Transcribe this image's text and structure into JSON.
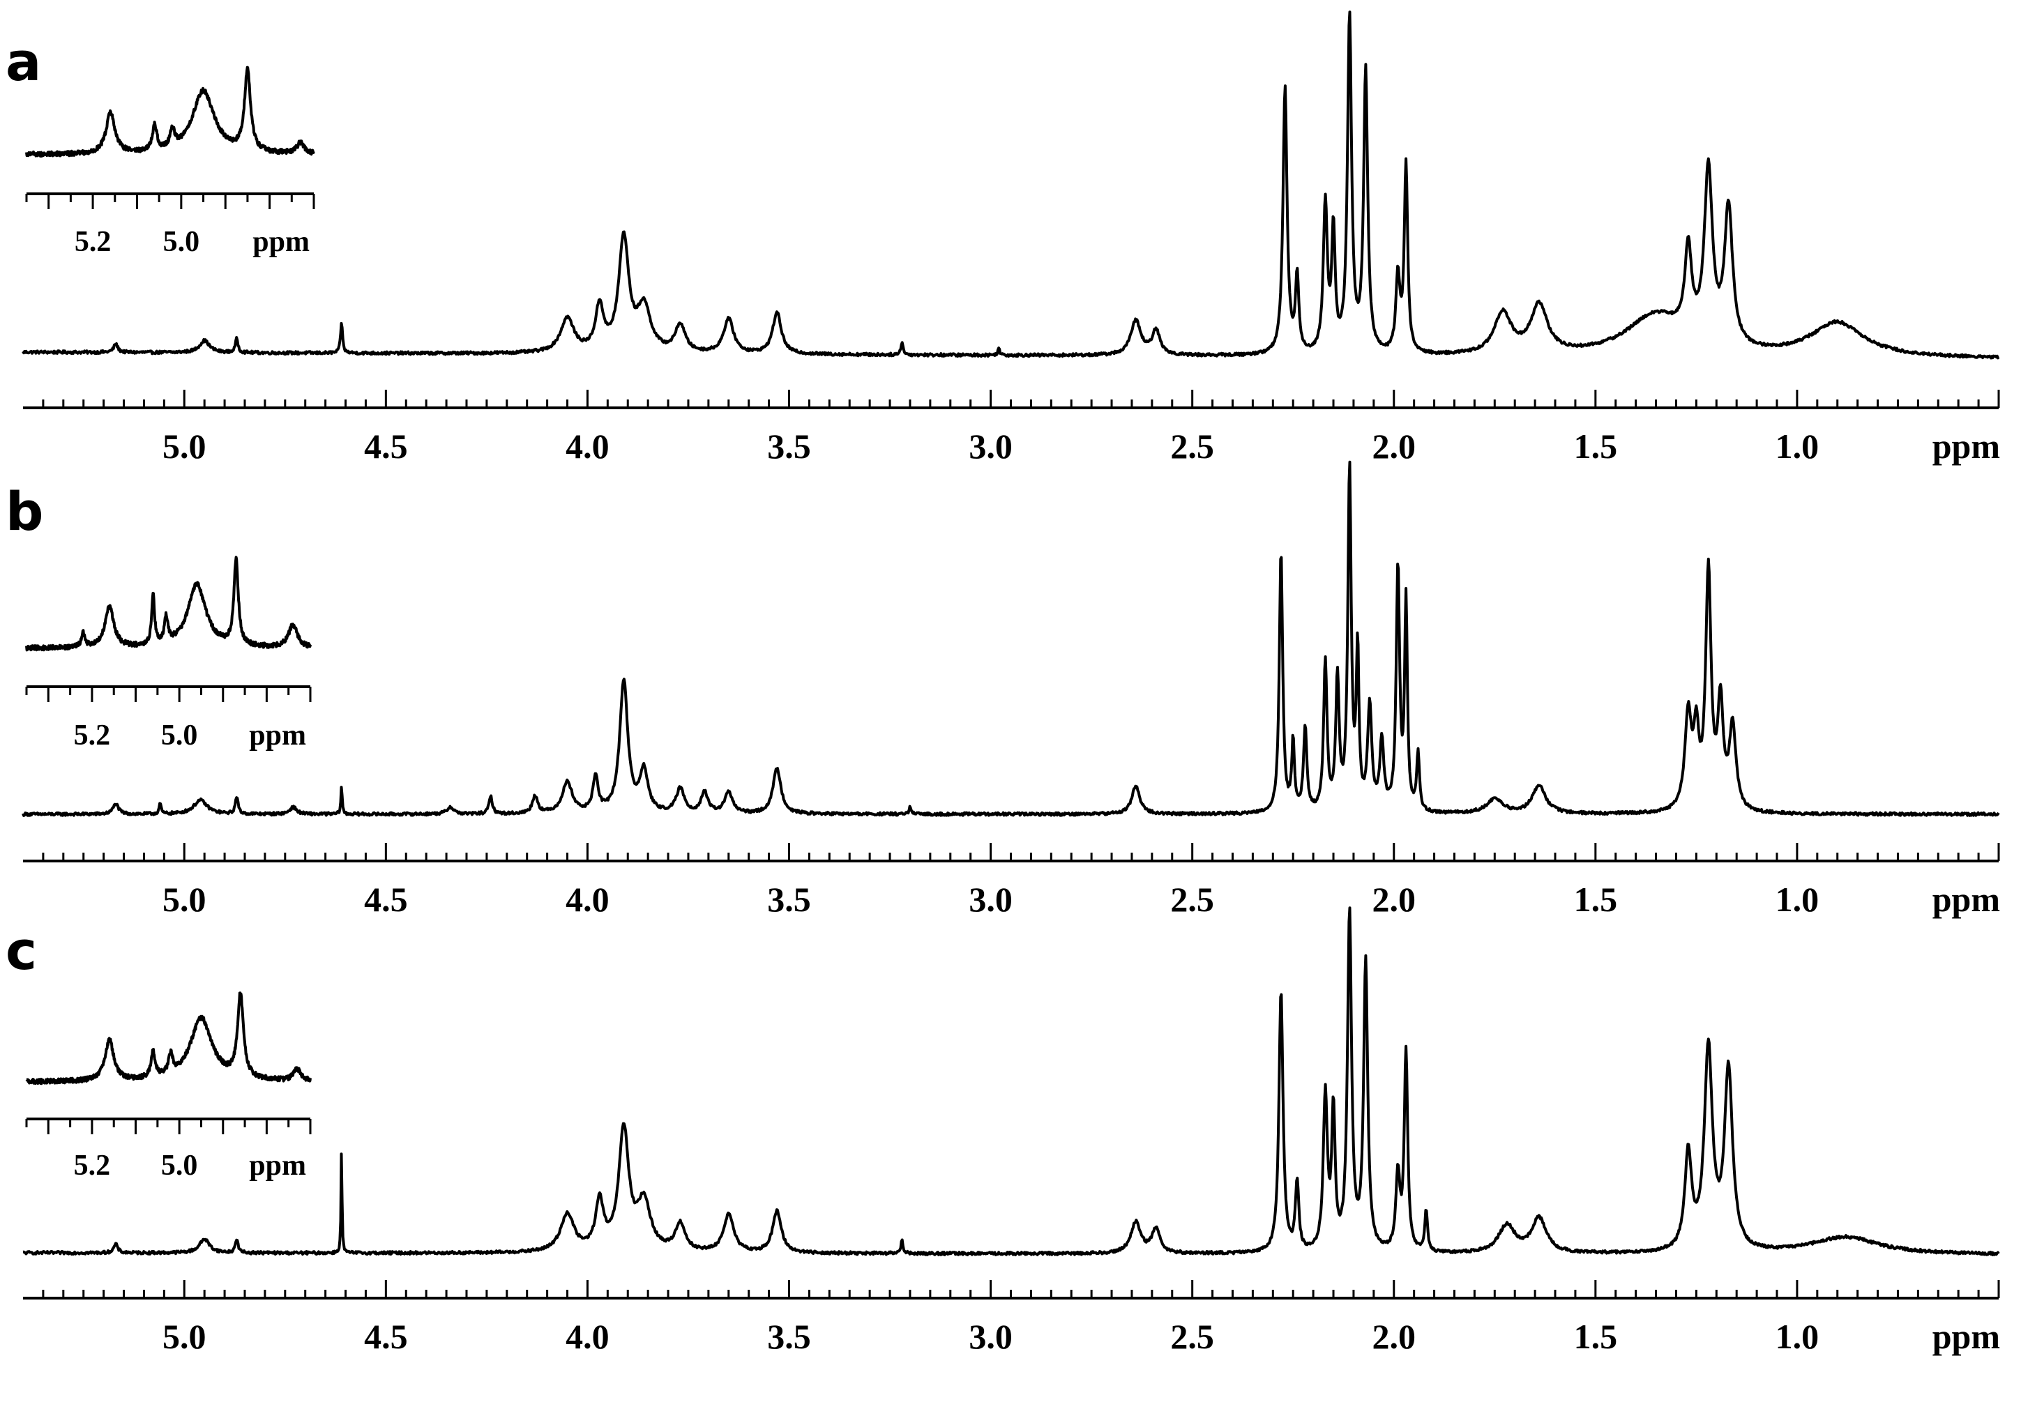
{
  "chart_data": [
    {
      "type": "line",
      "panel": "a",
      "xlabel": "ppm",
      "xlim": [
        5.4,
        0.5
      ],
      "x_ticks": [
        5.0,
        4.5,
        4.0,
        3.5,
        3.0,
        2.5,
        2.0,
        1.5,
        1.0
      ],
      "tick_labels": [
        "5.0",
        "4.5",
        "4.0",
        "3.5",
        "3.0",
        "2.5",
        "2.0",
        "1.5",
        "1.0"
      ],
      "baseline_tilt": 1,
      "peaks": [
        {
          "ppm": 5.17,
          "h": 0.025,
          "w": 0.006
        },
        {
          "ppm": 4.95,
          "h": 0.035,
          "w": 0.015
        },
        {
          "ppm": 4.87,
          "h": 0.04,
          "w": 0.004
        },
        {
          "ppm": 4.61,
          "h": 0.09,
          "w": 0.003
        },
        {
          "ppm": 4.05,
          "h": 0.1,
          "w": 0.02
        },
        {
          "ppm": 3.97,
          "h": 0.13,
          "w": 0.012
        },
        {
          "ppm": 3.91,
          "h": 0.33,
          "w": 0.015
        },
        {
          "ppm": 3.86,
          "h": 0.13,
          "w": 0.02
        },
        {
          "ppm": 3.77,
          "h": 0.08,
          "w": 0.015
        },
        {
          "ppm": 3.65,
          "h": 0.1,
          "w": 0.015
        },
        {
          "ppm": 3.53,
          "h": 0.12,
          "w": 0.013
        },
        {
          "ppm": 3.22,
          "h": 0.04,
          "w": 0.003
        },
        {
          "ppm": 2.98,
          "h": 0.02,
          "w": 0.003
        },
        {
          "ppm": 2.64,
          "h": 0.1,
          "w": 0.015
        },
        {
          "ppm": 2.59,
          "h": 0.07,
          "w": 0.012
        },
        {
          "ppm": 2.27,
          "h": 0.78,
          "w": 0.006
        },
        {
          "ppm": 2.24,
          "h": 0.22,
          "w": 0.005
        },
        {
          "ppm": 2.17,
          "h": 0.43,
          "w": 0.006
        },
        {
          "ppm": 2.15,
          "h": 0.35,
          "w": 0.005
        },
        {
          "ppm": 2.11,
          "h": 0.98,
          "w": 0.006
        },
        {
          "ppm": 2.07,
          "h": 0.82,
          "w": 0.006
        },
        {
          "ppm": 1.99,
          "h": 0.22,
          "w": 0.006
        },
        {
          "ppm": 1.97,
          "h": 0.55,
          "w": 0.005
        },
        {
          "ppm": 1.73,
          "h": 0.12,
          "w": 0.025
        },
        {
          "ppm": 1.64,
          "h": 0.14,
          "w": 0.025
        },
        {
          "ppm": 1.35,
          "h": 0.12,
          "w": 0.09
        },
        {
          "ppm": 1.27,
          "h": 0.25,
          "w": 0.01
        },
        {
          "ppm": 1.22,
          "h": 0.5,
          "w": 0.012
        },
        {
          "ppm": 1.17,
          "h": 0.4,
          "w": 0.012
        },
        {
          "ppm": 0.9,
          "h": 0.1,
          "w": 0.08
        }
      ],
      "inset": {
        "xlabel": "ppm",
        "xlim": [
          5.35,
          4.7
        ],
        "x_ticks": [
          5.2,
          5.0
        ],
        "tick_labels": [
          "5.2",
          "5.0"
        ],
        "peaks": [
          {
            "ppm": 5.16,
            "h": 0.45,
            "w": 0.012
          },
          {
            "ppm": 5.06,
            "h": 0.28,
            "w": 0.006
          },
          {
            "ppm": 5.02,
            "h": 0.2,
            "w": 0.006
          },
          {
            "ppm": 4.95,
            "h": 0.7,
            "w": 0.03
          },
          {
            "ppm": 4.85,
            "h": 0.9,
            "w": 0.008
          },
          {
            "ppm": 4.73,
            "h": 0.12,
            "w": 0.01
          }
        ]
      }
    },
    {
      "type": "line",
      "panel": "b",
      "xlabel": "ppm",
      "xlim": [
        5.4,
        0.5
      ],
      "x_ticks": [
        5.0,
        4.5,
        4.0,
        3.5,
        3.0,
        2.5,
        2.0,
        1.5,
        1.0
      ],
      "tick_labels": [
        "5.0",
        "4.5",
        "4.0",
        "3.5",
        "3.0",
        "2.5",
        "2.0",
        "1.5",
        "1.0"
      ],
      "baseline_tilt": 0,
      "peaks": [
        {
          "ppm": 5.17,
          "h": 0.03,
          "w": 0.008
        },
        {
          "ppm": 5.06,
          "h": 0.03,
          "w": 0.003
        },
        {
          "ppm": 4.96,
          "h": 0.04,
          "w": 0.02
        },
        {
          "ppm": 4.87,
          "h": 0.05,
          "w": 0.004
        },
        {
          "ppm": 4.73,
          "h": 0.02,
          "w": 0.01
        },
        {
          "ppm": 4.61,
          "h": 0.08,
          "w": 0.002
        },
        {
          "ppm": 4.34,
          "h": 0.02,
          "w": 0.01
        },
        {
          "ppm": 4.24,
          "h": 0.05,
          "w": 0.005
        },
        {
          "ppm": 4.13,
          "h": 0.05,
          "w": 0.008
        },
        {
          "ppm": 4.05,
          "h": 0.09,
          "w": 0.015
        },
        {
          "ppm": 3.98,
          "h": 0.1,
          "w": 0.008
        },
        {
          "ppm": 3.91,
          "h": 0.38,
          "w": 0.012
        },
        {
          "ppm": 3.86,
          "h": 0.12,
          "w": 0.012
        },
        {
          "ppm": 3.77,
          "h": 0.07,
          "w": 0.012
        },
        {
          "ppm": 3.71,
          "h": 0.06,
          "w": 0.01
        },
        {
          "ppm": 3.65,
          "h": 0.06,
          "w": 0.012
        },
        {
          "ppm": 3.53,
          "h": 0.13,
          "w": 0.012
        },
        {
          "ppm": 3.2,
          "h": 0.02,
          "w": 0.003
        },
        {
          "ppm": 2.64,
          "h": 0.08,
          "w": 0.012
        },
        {
          "ppm": 2.28,
          "h": 0.75,
          "w": 0.005
        },
        {
          "ppm": 2.25,
          "h": 0.2,
          "w": 0.004
        },
        {
          "ppm": 2.22,
          "h": 0.24,
          "w": 0.005
        },
        {
          "ppm": 2.17,
          "h": 0.43,
          "w": 0.005
        },
        {
          "ppm": 2.14,
          "h": 0.38,
          "w": 0.005
        },
        {
          "ppm": 2.11,
          "h": 0.98,
          "w": 0.005
        },
        {
          "ppm": 2.09,
          "h": 0.45,
          "w": 0.004
        },
        {
          "ppm": 2.06,
          "h": 0.3,
          "w": 0.006
        },
        {
          "ppm": 2.03,
          "h": 0.2,
          "w": 0.006
        },
        {
          "ppm": 1.99,
          "h": 0.7,
          "w": 0.005
        },
        {
          "ppm": 1.97,
          "h": 0.6,
          "w": 0.004
        },
        {
          "ppm": 1.94,
          "h": 0.17,
          "w": 0.004
        },
        {
          "ppm": 1.75,
          "h": 0.04,
          "w": 0.025
        },
        {
          "ppm": 1.64,
          "h": 0.08,
          "w": 0.02
        },
        {
          "ppm": 1.27,
          "h": 0.27,
          "w": 0.01
        },
        {
          "ppm": 1.25,
          "h": 0.2,
          "w": 0.008
        },
        {
          "ppm": 1.22,
          "h": 0.68,
          "w": 0.008
        },
        {
          "ppm": 1.19,
          "h": 0.3,
          "w": 0.008
        },
        {
          "ppm": 1.16,
          "h": 0.24,
          "w": 0.01
        }
      ],
      "inset": {
        "xlabel": "ppm",
        "xlim": [
          5.35,
          4.7
        ],
        "x_ticks": [
          5.2,
          5.0
        ],
        "tick_labels": [
          "5.2",
          "5.0"
        ],
        "peaks": [
          {
            "ppm": 5.22,
            "h": 0.15,
            "w": 0.005
          },
          {
            "ppm": 5.16,
            "h": 0.45,
            "w": 0.012
          },
          {
            "ppm": 5.06,
            "h": 0.55,
            "w": 0.004
          },
          {
            "ppm": 5.03,
            "h": 0.28,
            "w": 0.005
          },
          {
            "ppm": 4.96,
            "h": 0.7,
            "w": 0.025
          },
          {
            "ppm": 4.87,
            "h": 0.95,
            "w": 0.006
          },
          {
            "ppm": 4.74,
            "h": 0.25,
            "w": 0.012
          }
        ]
      }
    },
    {
      "type": "line",
      "panel": "c",
      "xlabel": "ppm",
      "xlim": [
        5.4,
        0.5
      ],
      "x_ticks": [
        5.0,
        4.5,
        4.0,
        3.5,
        3.0,
        2.5,
        2.0,
        1.5,
        1.0
      ],
      "tick_labels": [
        "5.0",
        "4.5",
        "4.0",
        "3.5",
        "3.0",
        "2.5",
        "2.0",
        "1.5",
        "1.0"
      ],
      "baseline_tilt": 0.3,
      "peaks": [
        {
          "ppm": 5.17,
          "h": 0.025,
          "w": 0.006
        },
        {
          "ppm": 4.95,
          "h": 0.04,
          "w": 0.015
        },
        {
          "ppm": 4.87,
          "h": 0.04,
          "w": 0.004
        },
        {
          "ppm": 4.61,
          "h": 0.3,
          "w": 0.0015
        },
        {
          "ppm": 4.05,
          "h": 0.11,
          "w": 0.02
        },
        {
          "ppm": 3.97,
          "h": 0.14,
          "w": 0.012
        },
        {
          "ppm": 3.91,
          "h": 0.35,
          "w": 0.015
        },
        {
          "ppm": 3.86,
          "h": 0.14,
          "w": 0.02
        },
        {
          "ppm": 3.77,
          "h": 0.08,
          "w": 0.015
        },
        {
          "ppm": 3.65,
          "h": 0.11,
          "w": 0.015
        },
        {
          "ppm": 3.53,
          "h": 0.12,
          "w": 0.013
        },
        {
          "ppm": 3.22,
          "h": 0.04,
          "w": 0.003
        },
        {
          "ppm": 2.64,
          "h": 0.09,
          "w": 0.015
        },
        {
          "ppm": 2.59,
          "h": 0.07,
          "w": 0.012
        },
        {
          "ppm": 2.28,
          "h": 0.76,
          "w": 0.006
        },
        {
          "ppm": 2.24,
          "h": 0.2,
          "w": 0.005
        },
        {
          "ppm": 2.17,
          "h": 0.45,
          "w": 0.006
        },
        {
          "ppm": 2.15,
          "h": 0.4,
          "w": 0.005
        },
        {
          "ppm": 2.11,
          "h": 0.98,
          "w": 0.006
        },
        {
          "ppm": 2.07,
          "h": 0.84,
          "w": 0.006
        },
        {
          "ppm": 1.99,
          "h": 0.22,
          "w": 0.006
        },
        {
          "ppm": 1.97,
          "h": 0.58,
          "w": 0.005
        },
        {
          "ppm": 1.92,
          "h": 0.12,
          "w": 0.004
        },
        {
          "ppm": 1.72,
          "h": 0.08,
          "w": 0.025
        },
        {
          "ppm": 1.64,
          "h": 0.1,
          "w": 0.022
        },
        {
          "ppm": 1.27,
          "h": 0.28,
          "w": 0.01
        },
        {
          "ppm": 1.22,
          "h": 0.58,
          "w": 0.012
        },
        {
          "ppm": 1.17,
          "h": 0.52,
          "w": 0.012
        },
        {
          "ppm": 0.88,
          "h": 0.05,
          "w": 0.1
        }
      ],
      "inset": {
        "xlabel": "ppm",
        "xlim": [
          5.35,
          4.7
        ],
        "x_ticks": [
          5.2,
          5.0
        ],
        "tick_labels": [
          "5.2",
          "5.0"
        ],
        "peaks": [
          {
            "ppm": 5.16,
            "h": 0.45,
            "w": 0.012
          },
          {
            "ppm": 5.06,
            "h": 0.28,
            "w": 0.006
          },
          {
            "ppm": 5.02,
            "h": 0.22,
            "w": 0.006
          },
          {
            "ppm": 4.95,
            "h": 0.7,
            "w": 0.03
          },
          {
            "ppm": 4.86,
            "h": 0.92,
            "w": 0.008
          },
          {
            "ppm": 4.73,
            "h": 0.13,
            "w": 0.01
          }
        ]
      }
    }
  ]
}
